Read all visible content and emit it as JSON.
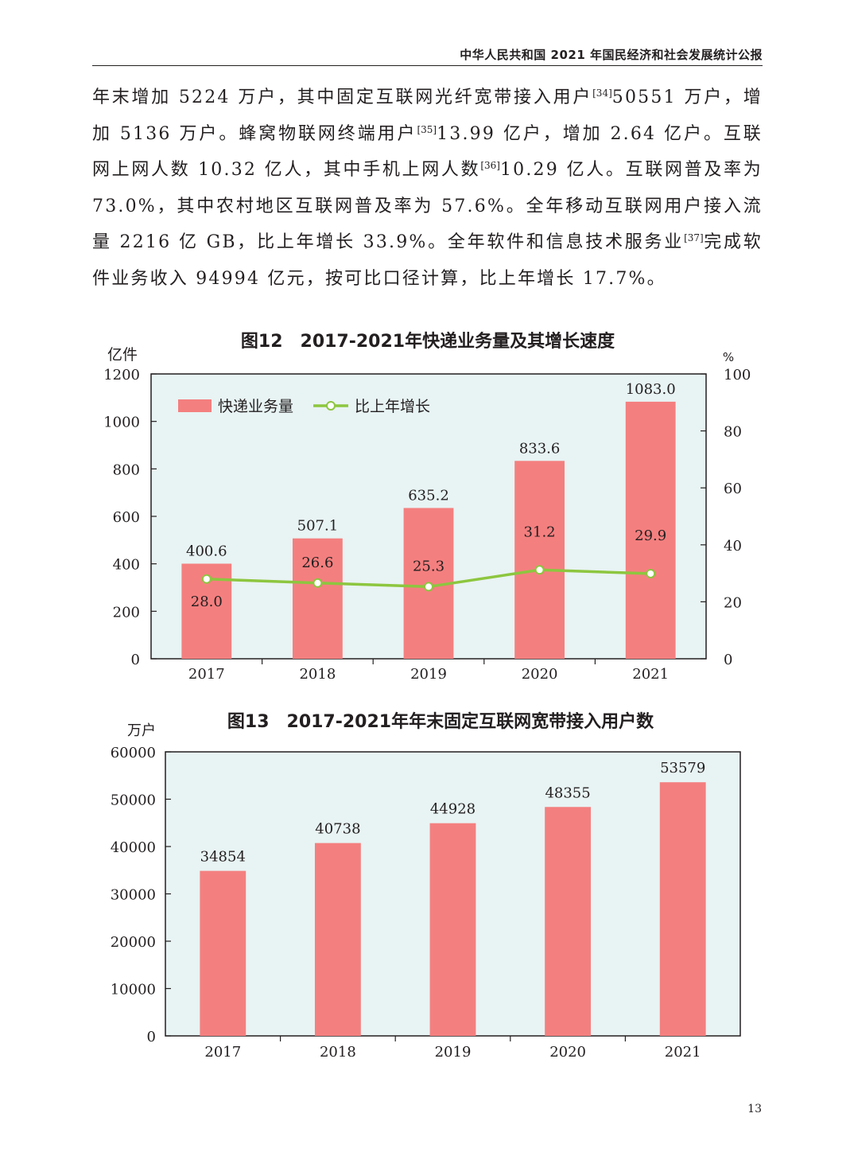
{
  "header": {
    "title": "中华人民共和国 2021 年国民经济和社会发展统计公报"
  },
  "paragraph": {
    "s1": "年末增加 5224 万户，其中固定互联网光纤宽带接入用户",
    "n1": "[34]",
    "s2": "50551 万户，增加 5136 万户。蜂窝物联网终端用户",
    "n2": "[35]",
    "s3": "13.99 亿户，增加 2.64 亿户。互联网上网人数 10.32 亿人，其中手机上网人数",
    "n3": "[36]",
    "s4": "10.29 亿人。互联网普及率为 73.0%，其中农村地区互联网普及率为 57.6%。全年移动互联网用户接入流量 2216 亿 GB，比上年增长 33.9%。全年软件和信息技术服务业",
    "n4": "[37]",
    "s5": "完成软件业务收入 94994 亿元，按可比口径计算，比上年增长 17.7%。"
  },
  "chart_data": [
    {
      "type": "bar",
      "title": "图12　2017-2021年快递业务量及其增长速度",
      "categories": [
        "2017",
        "2018",
        "2019",
        "2020",
        "2021"
      ],
      "left_axis_unit": "亿件",
      "right_axis_unit": "%",
      "ylim": [
        0,
        1200
      ],
      "y2lim": [
        0,
        100
      ],
      "y_ticks": [
        "0",
        "200",
        "400",
        "600",
        "800",
        "1000",
        "1200"
      ],
      "y2_ticks": [
        "0",
        "20",
        "40",
        "60",
        "80",
        "100"
      ],
      "legend_position": "top-left",
      "series": [
        {
          "name": "快递业务量",
          "type": "bar",
          "axis": "left",
          "values": [
            400.6,
            507.1,
            635.2,
            833.6,
            1083.0
          ],
          "labels": [
            "400.6",
            "507.1",
            "635.2",
            "833.6",
            "1083.0"
          ],
          "color": "#f47f7f"
        },
        {
          "name": "比上年增长",
          "type": "line",
          "axis": "right",
          "values": [
            28.0,
            26.6,
            25.3,
            31.2,
            29.9
          ],
          "labels": [
            "28.0",
            "26.6",
            "25.3",
            "31.2",
            "29.9"
          ],
          "color": "#8dc63f"
        }
      ],
      "plot_background": "#e8f3f3"
    },
    {
      "type": "bar",
      "title": "图13　2017-2021年年末固定互联网宽带接入用户数",
      "categories": [
        "2017",
        "2018",
        "2019",
        "2020",
        "2021"
      ],
      "left_axis_unit": "万户",
      "ylim": [
        0,
        60000
      ],
      "y_ticks": [
        "0",
        "10000",
        "20000",
        "30000",
        "40000",
        "50000",
        "60000"
      ],
      "series": [
        {
          "type": "bar",
          "axis": "left",
          "values": [
            34854,
            40738,
            44928,
            48355,
            53579
          ],
          "labels": [
            "34854",
            "40738",
            "44928",
            "48355",
            "53579"
          ],
          "color": "#f47f7f"
        }
      ],
      "plot_background": "#e8f3f3"
    }
  ],
  "page_number": "13"
}
